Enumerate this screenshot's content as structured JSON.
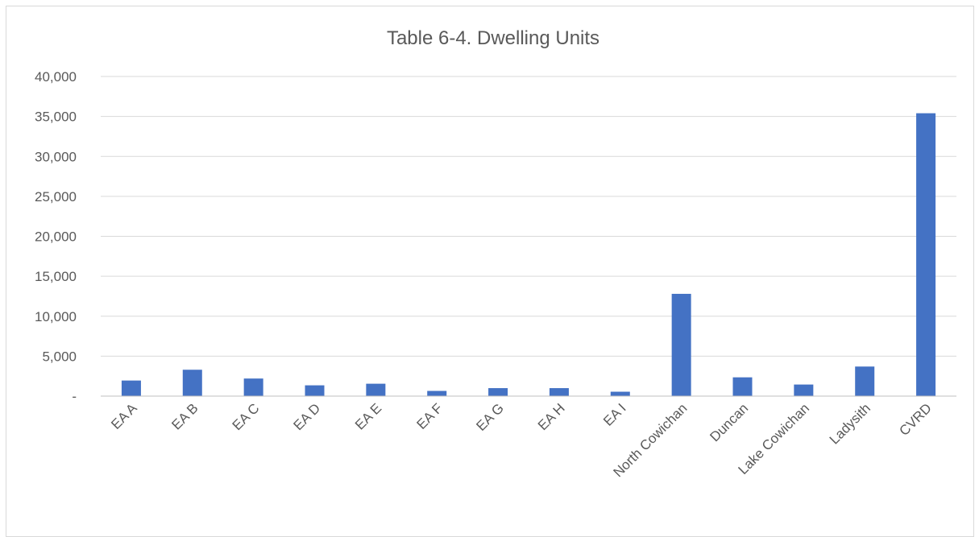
{
  "chart_data": {
    "type": "bar",
    "title": "Table 6-4. Dwelling Units",
    "xlabel": "",
    "ylabel": "",
    "categories": [
      "EA A",
      "EA B",
      "EA C",
      "EA D",
      "EA E",
      "EA F",
      "EA G",
      "EA H",
      "EA I",
      "North Cowichan",
      "Duncan",
      "Lake Cowichan",
      "Ladysith",
      "CVRD"
    ],
    "values": [
      1950,
      3300,
      2200,
      1350,
      1550,
      650,
      1000,
      1000,
      550,
      12800,
      2350,
      1450,
      3700,
      35400
    ],
    "ylim": [
      0,
      40000
    ],
    "yticks": [
      0,
      5000,
      10000,
      15000,
      20000,
      25000,
      30000,
      35000,
      40000
    ],
    "ytick_labels": [
      "-",
      "5,000",
      "10,000",
      "15,000",
      "20,000",
      "25,000",
      "30,000",
      "35,000",
      "40,000"
    ],
    "grid": true,
    "legend": "none",
    "bar_color": "#4472c4"
  }
}
